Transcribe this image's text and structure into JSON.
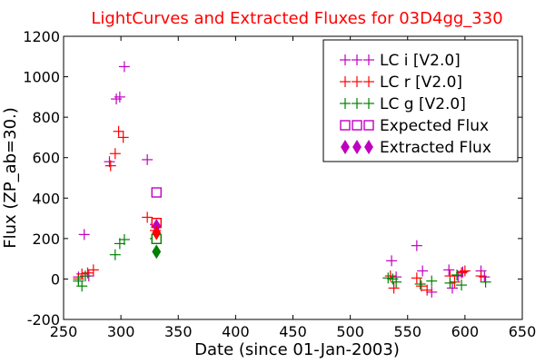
{
  "chart_data": {
    "type": "scatter",
    "title": "LightCurves and Extracted Fluxes for 03D4gg_330",
    "xlabel": "Date (since 01-Jan-2003)",
    "ylabel": "Flux (ZP_ab=30.)",
    "xlim": [
      250,
      650
    ],
    "ylim": [
      -200,
      1200
    ],
    "x_ticks": [
      "250",
      "300",
      "350",
      "400",
      "450",
      "500",
      "550",
      "600",
      "650"
    ],
    "y_ticks": [
      "-200",
      "0",
      "200",
      "400",
      "600",
      "800",
      "1000",
      "1200"
    ],
    "legend_placement": "top-right",
    "series": [
      {
        "name": "LC i [V2.0]",
        "marker": "plus",
        "color": "#bf00bf",
        "x": [
          263,
          268,
          272,
          290,
          296,
          299,
          303,
          323,
          330,
          536,
          540,
          558,
          563,
          571,
          586,
          589,
          594,
          598,
          614,
          617
        ],
        "y": [
          10,
          220,
          15,
          580,
          890,
          900,
          1050,
          590,
          270,
          90,
          10,
          165,
          40,
          -65,
          45,
          -45,
          15,
          35,
          40,
          10
        ]
      },
      {
        "name": "LC r [V2.0]",
        "marker": "plus",
        "color": "#ff0000",
        "x": [
          263,
          266,
          271,
          276,
          291,
          295,
          298,
          302,
          323,
          330,
          535,
          538,
          558,
          562,
          567,
          587,
          591,
          597,
          600,
          614
        ],
        "y": [
          0,
          25,
          30,
          45,
          560,
          620,
          730,
          700,
          305,
          240,
          15,
          -45,
          5,
          -35,
          -55,
          15,
          -15,
          30,
          40,
          15
        ]
      },
      {
        "name": "LC g [V2.0]",
        "marker": "plus",
        "color": "#008000",
        "x": [
          263,
          266,
          269,
          295,
          299,
          303,
          330,
          533,
          537,
          540,
          561,
          571,
          587,
          593,
          597,
          618
        ],
        "y": [
          -10,
          -35,
          15,
          120,
          175,
          195,
          200,
          5,
          0,
          -15,
          -25,
          -10,
          -20,
          20,
          -30,
          -15
        ]
      },
      {
        "name": "Expected Flux",
        "marker": "square",
        "color": "#bf00bf",
        "x": [
          331,
          331,
          331
        ],
        "y": [
          428,
          277,
          198
        ]
      },
      {
        "name": "Extracted Flux",
        "marker": "diamond",
        "color": "#bf00bf",
        "x": [
          331,
          331,
          331
        ],
        "y": [
          262,
          228,
          135
        ]
      }
    ],
    "overlay_colors": {
      "expected": [
        "#bf00bf",
        "#ff0000",
        "#008000"
      ],
      "extracted": [
        "#bf00bf",
        "#ff0000",
        "#008000"
      ]
    }
  }
}
